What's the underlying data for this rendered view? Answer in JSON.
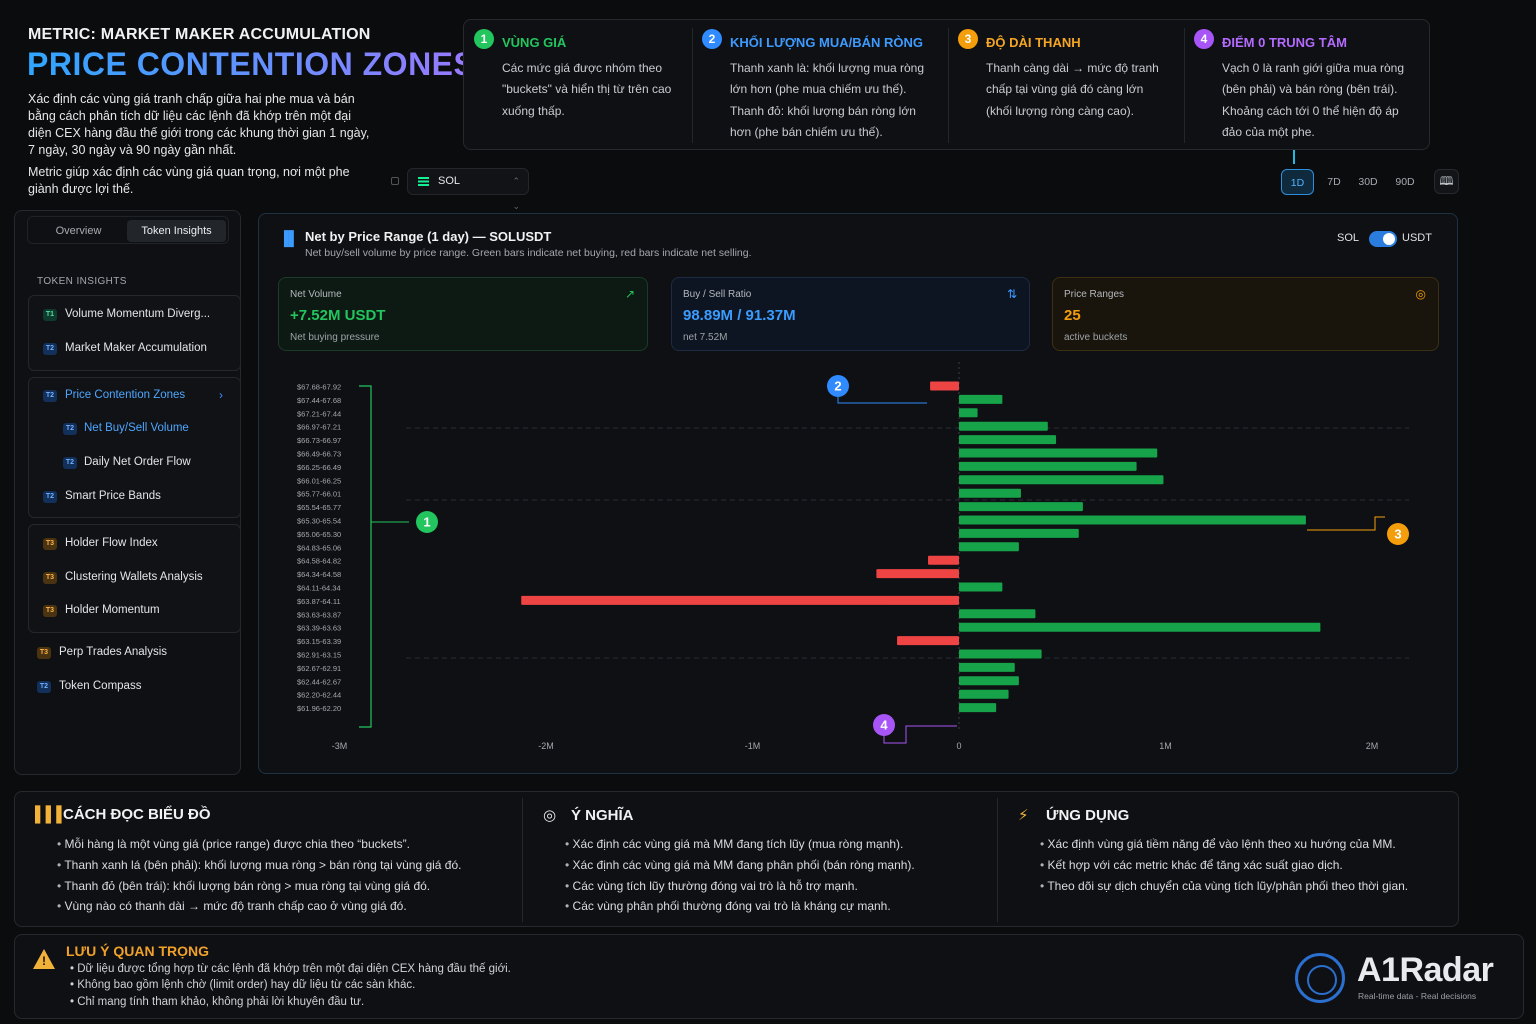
{
  "header": {
    "metric_label": "METRIC: MARKET MAKER ACCUMULATION",
    "title": "PRICE CONTENTION ZONES",
    "intro": "Xác định các vùng giá tranh chấp giữa hai phe mua và bán bằng cách phân tích dữ liệu các lệnh đã khớp trên một đại diện CEX hàng đầu thế giới trong các khung thời gian 1 ngày, 7 ngày, 30 ngày và 90 ngày gần nhất.",
    "intro2": "Metric giúp xác định các vùng giá quan trọng, nơi một phe giành được lợi thế."
  },
  "token_select": {
    "value": "SOL"
  },
  "steps": [
    {
      "num": "1",
      "title": "VÙNG GIÁ",
      "color": "#22c55e",
      "text": "Các mức giá được nhóm theo \"buckets\" và hiển thị từ trên cao xuống thấp."
    },
    {
      "num": "2",
      "title": "KHỐI LƯỢNG MUA/BÁN RÒNG",
      "color": "#2f8bff",
      "text": "Thanh xanh là: khối lượng mua ròng lớn hơn (phe mua chiếm ưu thế). Thanh đỏ: khối lượng bán ròng lớn hơn (phe bán chiếm ưu thế)."
    },
    {
      "num": "3",
      "title": "ĐỘ DÀI THANH",
      "color": "#f59e0b",
      "text": "Thanh càng dài → mức độ tranh chấp tại vùng giá đó càng lớn (khối lượng ròng càng cao)."
    },
    {
      "num": "4",
      "title": "ĐIỂM 0 TRUNG TÂM",
      "color": "#a855f7",
      "text": "Vạch 0 là ranh giới giữa mua ròng (bên phải) và bán ròng (bên trái). Khoảng cách tới 0 thể hiện độ áp đảo của một phe."
    }
  ],
  "timeframes": [
    "1D",
    "7D",
    "30D",
    "90D"
  ],
  "active_timeframe": "1D",
  "sidebar": {
    "tabs": [
      "Overview",
      "Token Insights"
    ],
    "active_tab": "Token Insights",
    "section_label": "TOKEN INSIGHTS",
    "group1": [
      {
        "tag": "T1",
        "label": "Volume Momentum Diverg..."
      },
      {
        "tag": "T2",
        "label": "Market Maker Accumulation"
      }
    ],
    "group2": [
      {
        "tag": "T2",
        "label": "Price Contention Zones"
      },
      {
        "tag": "T2",
        "label": "Net Buy/Sell Volume"
      },
      {
        "tag": "T2",
        "label": "Daily Net Order Flow"
      },
      {
        "tag": "T2",
        "label": "Smart Price Bands"
      }
    ],
    "group3": [
      {
        "tag": "T3",
        "label": "Holder Flow Index"
      },
      {
        "tag": "T3",
        "label": "Clustering Wallets Analysis"
      },
      {
        "tag": "T3",
        "label": "Holder Momentum"
      }
    ],
    "extra": [
      {
        "tag": "T3",
        "label": "Perp Trades Analysis"
      },
      {
        "tag": "T2",
        "label": "Token Compass"
      }
    ]
  },
  "chart_panel": {
    "title": "Net by Price Range (1 day) — SOLUSDT",
    "subtitle": "Net buy/sell volume by price range. Green bars indicate net buying, red bars indicate net selling.",
    "toggle_left": "SOL",
    "toggle_right": "USDT",
    "cards": [
      {
        "label": "Net Volume",
        "value": "+7.52M USDT",
        "note": "Net buying pressure",
        "color": "#22c55e",
        "icon": "trend-up-icon"
      },
      {
        "label": "Buy / Sell Ratio",
        "value": "98.89M / 91.37M",
        "note": "net 7.52M",
        "color": "#3b9cff",
        "icon": "swap-icon"
      },
      {
        "label": "Price Ranges",
        "value": "25",
        "note": "active buckets",
        "color": "#f59e0b",
        "icon": "target-icon"
      }
    ]
  },
  "chart_data": {
    "type": "bar",
    "orientation": "horizontal",
    "categories": [
      "$67.68-67.92",
      "$67.44-67.68",
      "$67.21-67.44",
      "$66.97-67.21",
      "$66.73-66.97",
      "$66.49-66.73",
      "$66.25-66.49",
      "$66.01-66.25",
      "$65.77-66.01",
      "$65.54-65.77",
      "$65.30-65.54",
      "$65.06-65.30",
      "$64.83-65.06",
      "$64.58-64.82",
      "$64.34-64.58",
      "$64.11-64.34",
      "$63.87-64.11",
      "$63.63-63.87",
      "$63.39-63.63",
      "$63.15-63.39",
      "$62.91-63.15",
      "$62.67-62.91",
      "$62.44-62.67",
      "$62.20-62.44",
      "$61.96-62.20"
    ],
    "values": [
      -0.14,
      0.21,
      0.09,
      0.43,
      0.47,
      0.96,
      0.86,
      0.99,
      0.3,
      0.6,
      1.68,
      0.58,
      0.29,
      -0.15,
      -0.4,
      0.21,
      -2.12,
      0.37,
      1.75,
      -0.3,
      0.4,
      0.27,
      0.29,
      0.24,
      0.18
    ],
    "xticks": [
      "-3M",
      "-2M",
      "-1M",
      "0",
      "1M",
      "2M"
    ],
    "xlim": [
      -3,
      2.2
    ],
    "unit": "USDT (millions)",
    "positive_color": "#16a34a",
    "negative_color": "#ef4444",
    "grid": true
  },
  "callouts": [
    "1",
    "2",
    "3",
    "4"
  ],
  "info": [
    {
      "title": "CÁCH ĐỌC BIỂU ĐỒ",
      "icon": "bar-chart-icon",
      "items": [
        "Mỗi hàng là một vùng giá (price range) được chia theo “buckets”.",
        "Thanh xanh lá (bên phải): khối lượng mua ròng > bán ròng tại vùng giá đó.",
        "Thanh đỏ (bên trái): khối lượng bán ròng > mua ròng tại vùng giá đó.",
        "Vùng nào có thanh dài → mức độ tranh chấp cao ở vùng giá đó."
      ]
    },
    {
      "title": "Ý NGHĨA",
      "icon": "target-icon",
      "items": [
        "Xác định các vùng giá mà MM đang tích lũy (mua ròng mạnh).",
        "Xác định các vùng giá mà MM đang phân phối (bán ròng mạnh).",
        "Các vùng tích lũy thường đóng vai trò là hỗ trợ mạnh.",
        "Các vùng phân phối thường đóng vai trò là kháng cự mạnh."
      ]
    },
    {
      "title": "ỨNG DỤNG",
      "icon": "lightning-icon",
      "items": [
        "Xác định vùng giá tiềm năng để vào lệnh theo xu hướng của MM.",
        "Kết hợp với các metric khác để tăng xác suất giao dịch.",
        "Theo dõi sự dịch chuyển của vùng tích lũy/phân phối theo thời gian."
      ]
    }
  ],
  "warning": {
    "title": "LƯU Ý QUAN TRỌNG",
    "items": [
      "Dữ liệu được tổng hợp từ các lệnh đã khớp trên một đại diện CEX hàng đầu thế giới.",
      "Không bao gồm lệnh chờ (limit order) hay dữ liệu từ các sàn khác.",
      "Chỉ mang tính tham khảo, không phải lời khuyên đầu tư."
    ]
  },
  "brand": {
    "name": "A1Radar",
    "tagline": "Real-time data - Real decisions"
  }
}
